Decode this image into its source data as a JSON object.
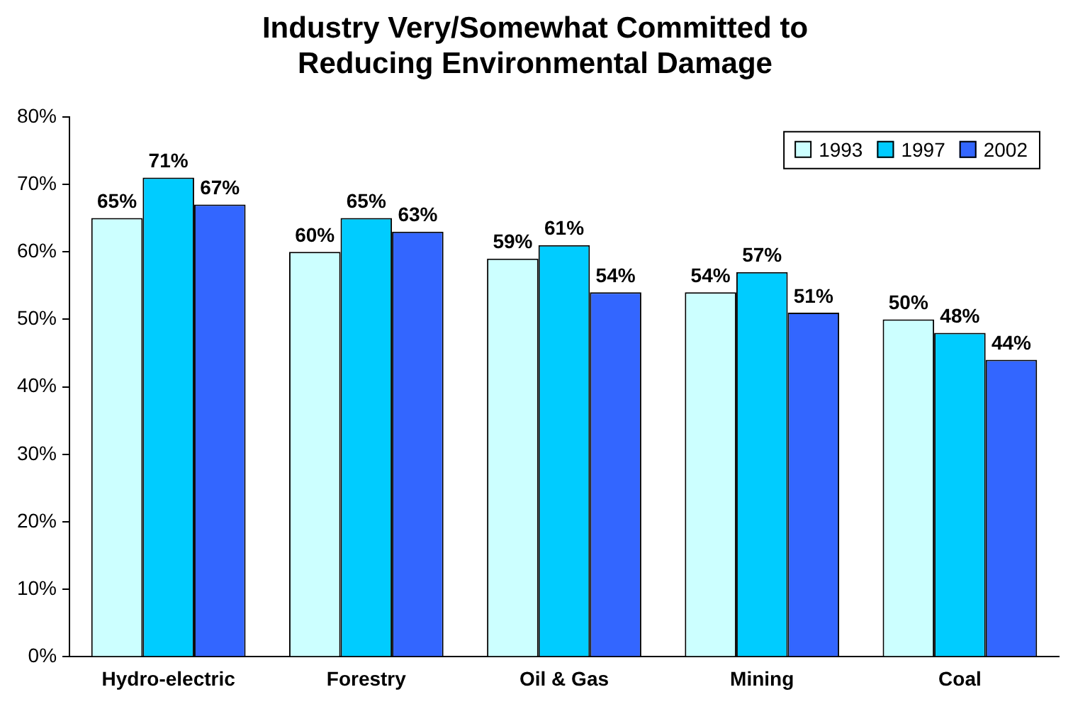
{
  "chart_data": {
    "type": "bar",
    "title": "Industry Very/Somewhat Committed to\nReducing Environmental Damage",
    "categories": [
      "Hydro-electric",
      "Forestry",
      "Oil & Gas",
      "Mining",
      "Coal"
    ],
    "series": [
      {
        "name": "1993",
        "color": "#ccffff",
        "values": [
          65,
          60,
          59,
          54,
          50
        ],
        "value_labels": [
          "65%",
          "60%",
          "59%",
          "54%",
          "50%"
        ]
      },
      {
        "name": "1997",
        "color": "#00ccff",
        "values": [
          71,
          65,
          61,
          57,
          48
        ],
        "value_labels": [
          "71%",
          "65%",
          "61%",
          "57%",
          "48%"
        ]
      },
      {
        "name": "2002",
        "color": "#3366ff",
        "values": [
          67,
          63,
          54,
          51,
          44
        ],
        "value_labels": [
          "67%",
          "63%",
          "54%",
          "51%",
          "44%"
        ]
      }
    ],
    "ylim": [
      0,
      80
    ],
    "yticks": [
      {
        "value": 0,
        "label": "0%"
      },
      {
        "value": 10,
        "label": "10%"
      },
      {
        "value": 20,
        "label": "20%"
      },
      {
        "value": 30,
        "label": "30%"
      },
      {
        "value": 40,
        "label": "40%"
      },
      {
        "value": 50,
        "label": "50%"
      },
      {
        "value": 60,
        "label": "60%"
      },
      {
        "value": 70,
        "label": "70%"
      },
      {
        "value": 80,
        "label": "80%"
      }
    ],
    "grid": false,
    "legend": "top right"
  }
}
